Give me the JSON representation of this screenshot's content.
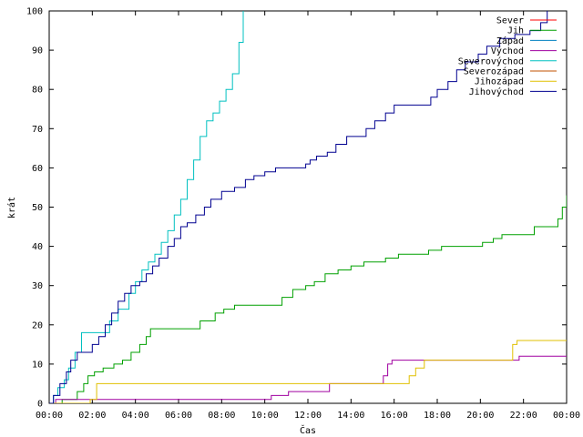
{
  "chart_data": {
    "type": "line",
    "title": "",
    "xlabel": "Čas",
    "ylabel": "krát",
    "xlim": [
      0,
      24
    ],
    "ylim": [
      0,
      100
    ],
    "x_ticks": [
      "00:00",
      "02:00",
      "04:00",
      "06:00",
      "08:00",
      "10:00",
      "12:00",
      "14:00",
      "16:00",
      "18:00",
      "20:00",
      "22:00",
      "00:00"
    ],
    "y_ticks": [
      0,
      10,
      20,
      30,
      40,
      50,
      60,
      70,
      80,
      90,
      100
    ],
    "grid": false,
    "legend_position": "top-right",
    "series": [
      {
        "name": "Sever",
        "color": "#ff0000",
        "points": []
      },
      {
        "name": "Jih",
        "color": "#00a000",
        "points": [
          [
            0,
            0
          ],
          [
            0.6,
            1
          ],
          [
            1.3,
            3
          ],
          [
            1.6,
            5
          ],
          [
            1.8,
            7
          ],
          [
            2.1,
            8
          ],
          [
            2.5,
            9
          ],
          [
            3.0,
            10
          ],
          [
            3.4,
            11
          ],
          [
            3.8,
            13
          ],
          [
            4.2,
            15
          ],
          [
            4.5,
            17
          ],
          [
            4.7,
            19
          ],
          [
            6.5,
            19
          ],
          [
            7.0,
            21
          ],
          [
            7.7,
            23
          ],
          [
            8.1,
            24
          ],
          [
            8.6,
            25
          ],
          [
            10.3,
            25
          ],
          [
            10.8,
            27
          ],
          [
            11.3,
            29
          ],
          [
            11.9,
            30
          ],
          [
            12.3,
            31
          ],
          [
            12.8,
            33
          ],
          [
            13.4,
            34
          ],
          [
            14.0,
            35
          ],
          [
            14.6,
            36
          ],
          [
            15.6,
            37
          ],
          [
            16.2,
            38
          ],
          [
            17.6,
            39
          ],
          [
            18.2,
            40
          ],
          [
            20.1,
            41
          ],
          [
            20.6,
            42
          ],
          [
            21.0,
            43
          ],
          [
            22.5,
            45
          ],
          [
            23.6,
            47
          ],
          [
            23.8,
            50
          ],
          [
            24,
            53
          ]
        ]
      },
      {
        "name": "Západ",
        "color": "#0080c0",
        "points": []
      },
      {
        "name": "Východ",
        "color": "#a000a0",
        "points": [
          [
            0,
            0
          ],
          [
            0.3,
            1
          ],
          [
            10.0,
            1
          ],
          [
            10.3,
            2
          ],
          [
            11.1,
            3
          ],
          [
            13.0,
            5
          ],
          [
            15.5,
            7
          ],
          [
            15.7,
            10
          ],
          [
            15.9,
            11
          ],
          [
            21.4,
            11
          ],
          [
            21.8,
            12
          ],
          [
            24,
            12
          ]
        ]
      },
      {
        "name": "Severovýchod",
        "color": "#00c0c0",
        "points": [
          [
            0,
            0
          ],
          [
            0.2,
            2
          ],
          [
            0.4,
            4
          ],
          [
            0.7,
            6
          ],
          [
            0.9,
            9
          ],
          [
            1.2,
            13
          ],
          [
            1.5,
            18
          ],
          [
            2.4,
            18
          ],
          [
            2.8,
            21
          ],
          [
            3.2,
            24
          ],
          [
            3.7,
            28
          ],
          [
            4.0,
            31
          ],
          [
            4.3,
            34
          ],
          [
            4.6,
            36
          ],
          [
            4.9,
            38
          ],
          [
            5.2,
            41
          ],
          [
            5.5,
            44
          ],
          [
            5.8,
            48
          ],
          [
            6.1,
            52
          ],
          [
            6.4,
            57
          ],
          [
            6.7,
            62
          ],
          [
            7.0,
            68
          ],
          [
            7.3,
            72
          ],
          [
            7.6,
            74
          ],
          [
            7.9,
            77
          ],
          [
            8.2,
            80
          ],
          [
            8.5,
            84
          ],
          [
            8.8,
            92
          ],
          [
            9.0,
            100
          ]
        ]
      },
      {
        "name": "Severozápad",
        "color": "#c05000",
        "points": []
      },
      {
        "name": "Jihozápad",
        "color": "#e0c000",
        "points": [
          [
            0,
            0
          ],
          [
            1.9,
            1
          ],
          [
            2.2,
            5
          ],
          [
            5.0,
            5
          ],
          [
            12.9,
            5
          ],
          [
            16.7,
            7
          ],
          [
            17.0,
            9
          ],
          [
            17.4,
            11
          ],
          [
            21.2,
            11
          ],
          [
            21.5,
            15
          ],
          [
            21.7,
            16
          ],
          [
            24,
            16
          ]
        ]
      },
      {
        "name": "Jihovýchod",
        "color": "#000090",
        "points": [
          [
            0,
            0
          ],
          [
            0.2,
            2
          ],
          [
            0.5,
            5
          ],
          [
            0.8,
            8
          ],
          [
            1.0,
            11
          ],
          [
            1.3,
            13
          ],
          [
            2.0,
            15
          ],
          [
            2.3,
            17
          ],
          [
            2.6,
            20
          ],
          [
            2.9,
            23
          ],
          [
            3.2,
            26
          ],
          [
            3.5,
            28
          ],
          [
            3.8,
            30
          ],
          [
            4.2,
            31
          ],
          [
            4.5,
            33
          ],
          [
            4.8,
            35
          ],
          [
            5.1,
            37
          ],
          [
            5.5,
            40
          ],
          [
            5.8,
            42
          ],
          [
            6.1,
            45
          ],
          [
            6.4,
            46
          ],
          [
            6.8,
            48
          ],
          [
            7.2,
            50
          ],
          [
            7.5,
            52
          ],
          [
            8.0,
            54
          ],
          [
            8.6,
            55
          ],
          [
            9.1,
            57
          ],
          [
            9.5,
            58
          ],
          [
            10.0,
            59
          ],
          [
            10.5,
            60
          ],
          [
            11.9,
            61
          ],
          [
            12.1,
            62
          ],
          [
            12.4,
            63
          ],
          [
            12.9,
            64
          ],
          [
            13.3,
            66
          ],
          [
            13.8,
            68
          ],
          [
            14.7,
            70
          ],
          [
            15.1,
            72
          ],
          [
            15.6,
            74
          ],
          [
            16.0,
            76
          ],
          [
            17.3,
            76
          ],
          [
            17.7,
            78
          ],
          [
            18.0,
            80
          ],
          [
            18.5,
            82
          ],
          [
            18.9,
            85
          ],
          [
            19.3,
            87
          ],
          [
            19.9,
            89
          ],
          [
            20.3,
            91
          ],
          [
            20.9,
            93
          ],
          [
            21.6,
            94
          ],
          [
            22.3,
            95
          ],
          [
            22.8,
            97
          ],
          [
            23.1,
            100
          ]
        ]
      }
    ]
  }
}
